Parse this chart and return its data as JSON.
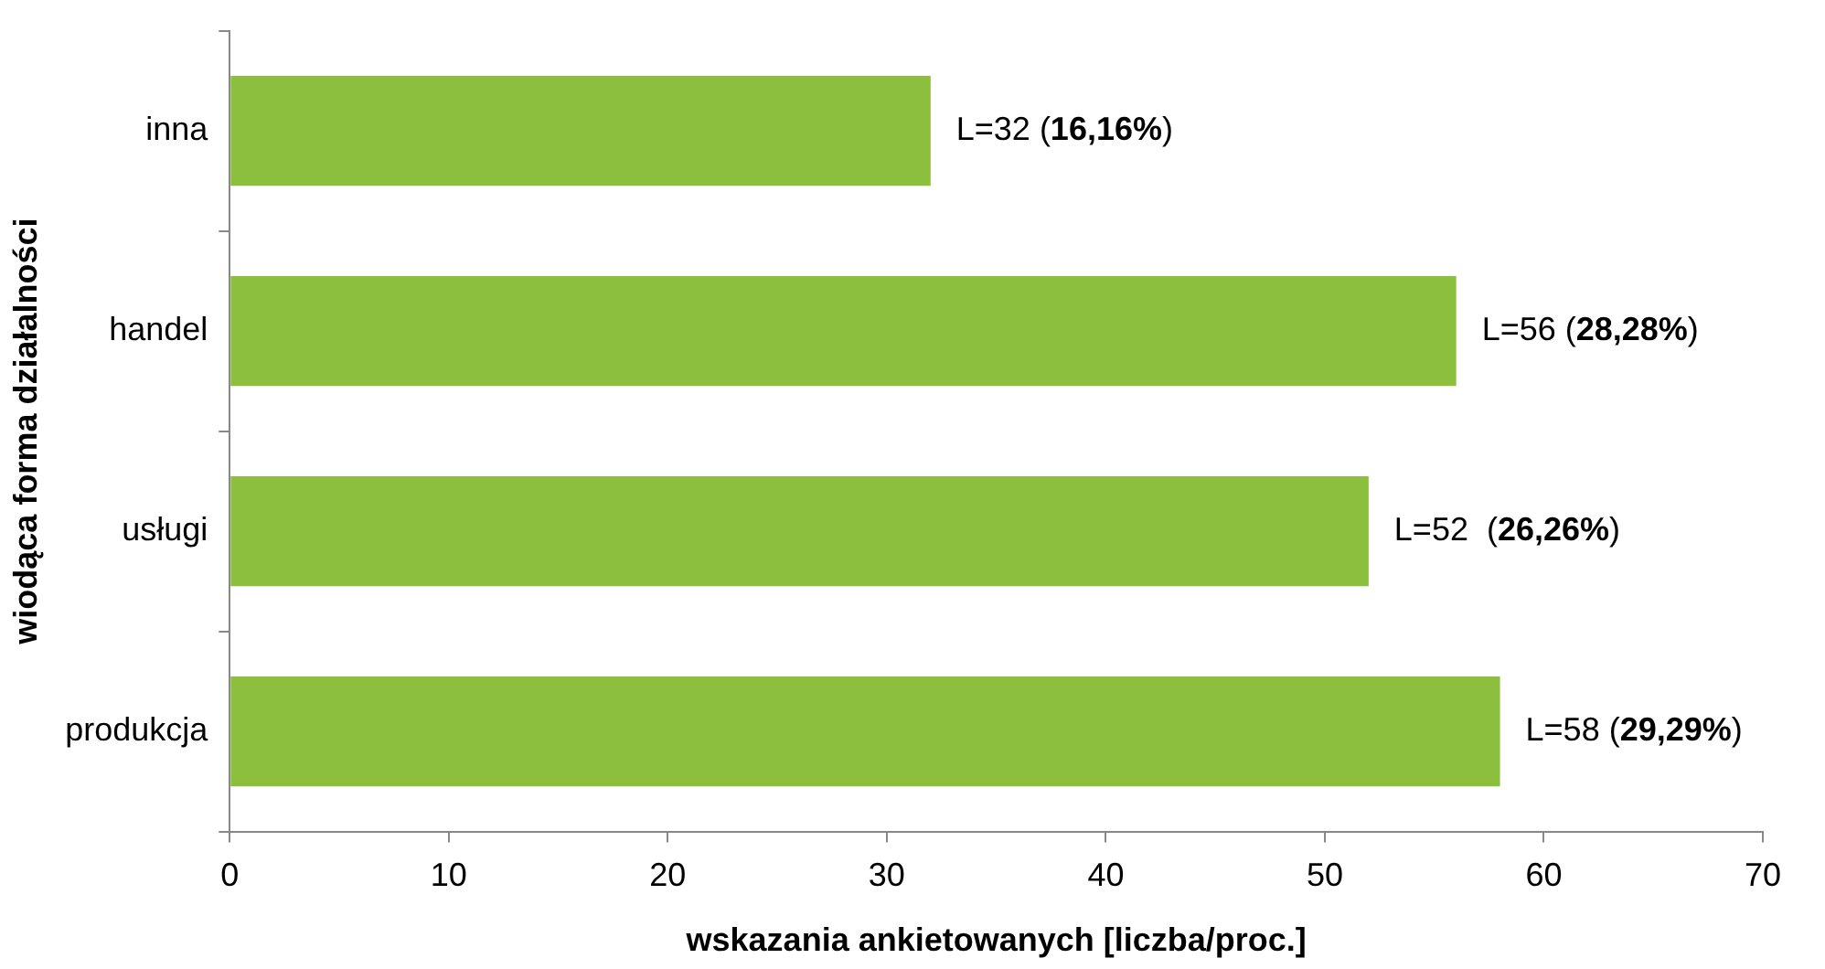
{
  "chart_data": {
    "type": "bar",
    "orientation": "horizontal",
    "xlabel": "wskazania ankietowanych [liczba/proc.]",
    "ylabel": "wiodąca forma działalności",
    "categories": [
      "inna",
      "handel",
      "usługi",
      "produkcja"
    ],
    "values": [
      32,
      56,
      52,
      58
    ],
    "color": "#8dbf3e",
    "value_labels": [
      "L=32 (16,16%)",
      "L=56 (28,28%)",
      "L=52  (26,26%)",
      "L=58 (29,29%)"
    ],
    "xlim": [
      0,
      70
    ],
    "xticks": [
      0,
      10,
      20,
      30,
      40,
      50,
      60,
      70
    ],
    "grid": false,
    "legend": false
  }
}
